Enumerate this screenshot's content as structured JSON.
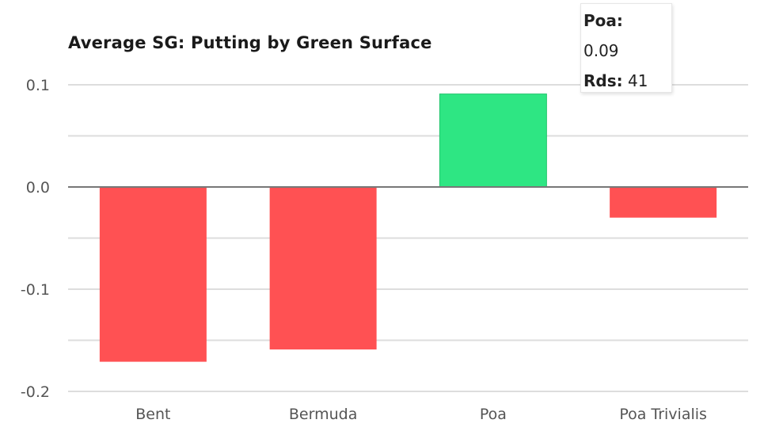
{
  "chart_data": {
    "type": "bar",
    "title": "Average SG: Putting by Green Surface",
    "categories": [
      "Bent",
      "Bermuda",
      "Poa",
      "Poa Trivialis"
    ],
    "values": [
      -0.171,
      -0.159,
      0.091,
      -0.03
    ],
    "ylim": [
      -0.2,
      0.13
    ],
    "y_ticks": [
      "0.1",
      "0.0",
      "-0.1",
      "-0.2"
    ],
    "y_tick_values": [
      0.1,
      0.0,
      -0.1,
      -0.2
    ],
    "grid": true,
    "colors": {
      "positive": "#2ee683",
      "negative": "#ff5153",
      "grid": "#dddddd",
      "zero_line": "#777777"
    }
  },
  "tooltip": {
    "category": "Poa:",
    "value": "0.09",
    "rounds_label": "Rds:",
    "rounds_value": "41"
  }
}
